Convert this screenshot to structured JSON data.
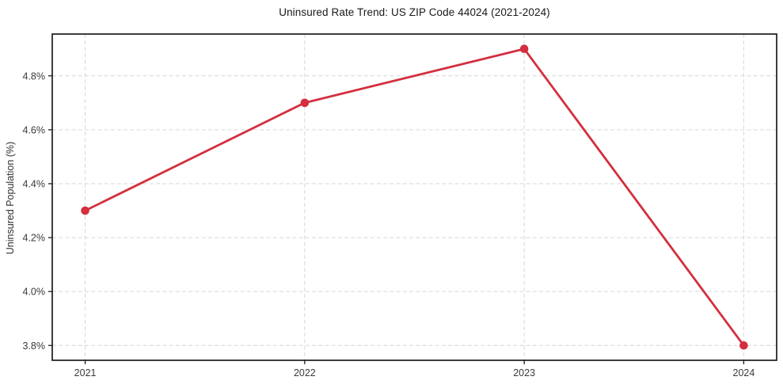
{
  "chart_data": {
    "type": "line",
    "title": "Uninsured Rate Trend: US ZIP Code 44024 (2021-2024)",
    "xlabel": "",
    "ylabel": "Uninsured Population (%)",
    "x": [
      2021,
      2022,
      2023,
      2024
    ],
    "values": [
      4.3,
      4.7,
      4.9,
      3.8
    ],
    "xlim": [
      2020.85,
      2024.15
    ],
    "ylim": [
      3.745,
      4.955
    ],
    "xticks": [
      {
        "v": 2021,
        "label": "2021"
      },
      {
        "v": 2022,
        "label": "2022"
      },
      {
        "v": 2023,
        "label": "2023"
      },
      {
        "v": 2024,
        "label": "2024"
      }
    ],
    "yticks": [
      {
        "v": 3.8,
        "label": "3.8%"
      },
      {
        "v": 4.0,
        "label": "4.0%"
      },
      {
        "v": 4.2,
        "label": "4.2%"
      },
      {
        "v": 4.4,
        "label": "4.4%"
      },
      {
        "v": 4.6,
        "label": "4.6%"
      },
      {
        "v": 4.8,
        "label": "4.8%"
      }
    ],
    "grid": true,
    "legend": "none",
    "marker": "circle",
    "line_color": "#d32f3f",
    "grid_color": "#d6d6d6",
    "axis_color": "#1c1c1c",
    "tick_label_color": "#3a3a3a"
  }
}
